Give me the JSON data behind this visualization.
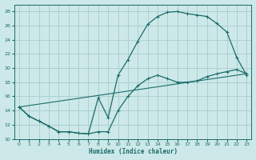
{
  "xlabel": "Humidex (Indice chaleur)",
  "background_color": "#cce8e8",
  "grid_color": "#aacccc",
  "line_color": "#1a6b6b",
  "xlim": [
    -0.5,
    23.5
  ],
  "ylim": [
    10,
    29
  ],
  "xticks": [
    0,
    1,
    2,
    3,
    4,
    5,
    6,
    7,
    8,
    9,
    10,
    11,
    12,
    13,
    14,
    15,
    16,
    17,
    18,
    19,
    20,
    21,
    22,
    23
  ],
  "yticks": [
    10,
    12,
    14,
    16,
    18,
    20,
    22,
    24,
    26,
    28
  ],
  "curve1_x": [
    0,
    1,
    2,
    3,
    4,
    5,
    6,
    7,
    8,
    9,
    10,
    11,
    12,
    13,
    14,
    15,
    16,
    17,
    18,
    19,
    20,
    21,
    22,
    23
  ],
  "curve1_y": [
    14.5,
    13.2,
    12.5,
    11.8,
    11.0,
    11.0,
    10.8,
    10.7,
    15.8,
    13.0,
    19.0,
    21.2,
    23.8,
    26.2,
    27.3,
    27.9,
    28.0,
    27.7,
    27.5,
    27.3,
    26.3,
    25.1,
    21.5,
    19.0
  ],
  "curve2_x": [
    0,
    1,
    2,
    3,
    4,
    5,
    6,
    7,
    8,
    9,
    10,
    11,
    12,
    13,
    14,
    15,
    16,
    17,
    18,
    19,
    20,
    21,
    22,
    23
  ],
  "curve2_y": [
    14.5,
    13.2,
    12.5,
    11.8,
    11.0,
    11.0,
    10.8,
    10.7,
    11.0,
    11.0,
    14.0,
    16.0,
    17.5,
    18.5,
    19.0,
    18.5,
    18.0,
    18.0,
    18.2,
    18.8,
    19.2,
    19.5,
    19.8,
    19.2
  ],
  "curve3_x": [
    0,
    23
  ],
  "curve3_y": [
    14.5,
    19.2
  ]
}
